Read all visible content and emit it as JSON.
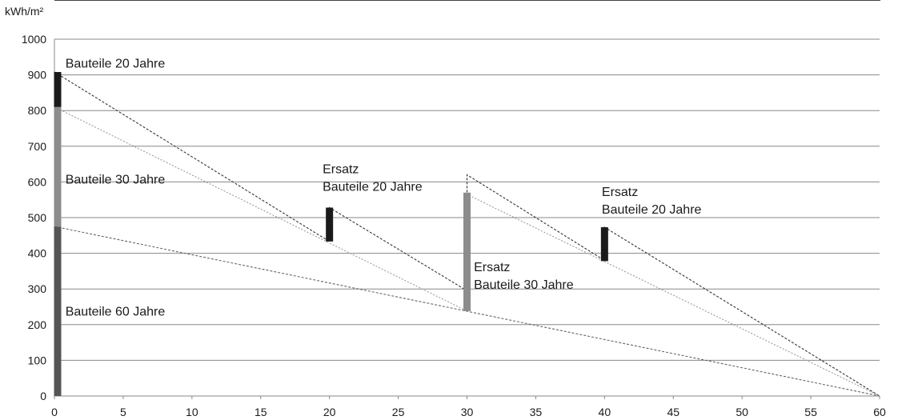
{
  "chart_data": {
    "type": "line",
    "ylabel": "kWh/m²",
    "xlabel": "",
    "title": "",
    "xlim": [
      0,
      60
    ],
    "ylim": [
      0,
      1000
    ],
    "x_ticks": [
      0,
      5,
      10,
      15,
      20,
      25,
      30,
      35,
      40,
      45,
      50,
      55,
      60
    ],
    "y_ticks": [
      0,
      100,
      200,
      300,
      400,
      500,
      600,
      700,
      800,
      900,
      1000
    ],
    "grid": "horizontal",
    "colors": {
      "bars_20": "#1a1a1a",
      "bars_30": "#8c8c8c",
      "bars_60": "#555555",
      "line_upper": "#333333",
      "line_mid": "#9a9a9a",
      "line_base": "#666666",
      "grid": "#888888",
      "axis": "#888888"
    },
    "bars": [
      {
        "x": 0,
        "y0": 0,
        "y1": 475,
        "color_key": "bars_60"
      },
      {
        "x": 0,
        "y0": 475,
        "y1": 810,
        "color_key": "bars_30"
      },
      {
        "x": 0,
        "y0": 810,
        "y1": 908,
        "color_key": "bars_20"
      },
      {
        "x": 20,
        "y0": 433,
        "y1": 528,
        "color_key": "bars_20"
      },
      {
        "x": 30,
        "y0": 238,
        "y1": 570,
        "color_key": "bars_30"
      },
      {
        "x": 40,
        "y0": 378,
        "y1": 473,
        "color_key": "bars_20"
      }
    ],
    "series": [
      {
        "points": [
          [
            0,
            908
          ],
          [
            20,
            433
          ],
          [
            20,
            528
          ],
          [
            30,
            295
          ],
          [
            30,
            620
          ],
          [
            40,
            380
          ],
          [
            40,
            473
          ],
          [
            60,
            0
          ]
        ],
        "color_key": "line_upper",
        "dash": "3,2"
      },
      {
        "points": [
          [
            0,
            810
          ],
          [
            30,
            238
          ],
          [
            30,
            565
          ],
          [
            60,
            0
          ]
        ],
        "color_key": "line_mid",
        "dash": "2,2"
      },
      {
        "points": [
          [
            0,
            475
          ],
          [
            60,
            0
          ]
        ],
        "color_key": "line_base",
        "dash": "3,2"
      }
    ],
    "annotations": [
      {
        "lines": [
          "Bauteile 20 Jahre"
        ],
        "x": 0.8,
        "y": 920
      },
      {
        "lines": [
          "Bauteile 30 Jahre"
        ],
        "x": 0.8,
        "y": 595
      },
      {
        "lines": [
          "Bauteile 60 Jahre"
        ],
        "x": 0.8,
        "y": 225
      },
      {
        "lines": [
          "Ersatz",
          "Bauteile 20 Jahre"
        ],
        "x": 19.5,
        "y": 625
      },
      {
        "lines": [
          "Ersatz",
          "Bauteile 30 Jahre"
        ],
        "x": 30.5,
        "y": 350
      },
      {
        "lines": [
          "Ersatz",
          "Bauteile 20 Jahre"
        ],
        "x": 39.8,
        "y": 560
      }
    ]
  }
}
